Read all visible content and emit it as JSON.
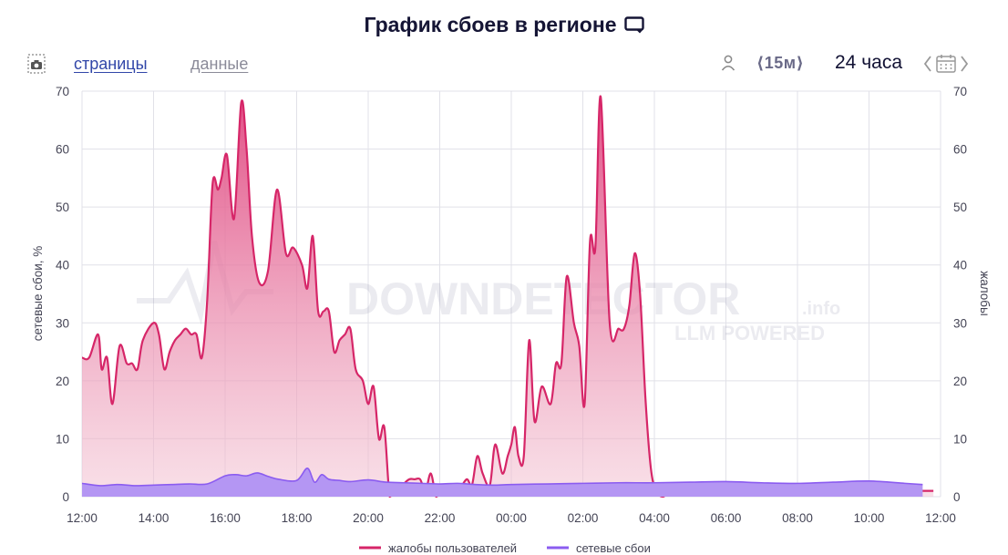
{
  "header": {
    "title": "График сбоев в регионе",
    "title_icon": "monitor-icon"
  },
  "toolbar": {
    "camera_icon": "camera-icon",
    "tab_pages": "страницы",
    "tab_data": "данные",
    "user_icon": "user-icon",
    "interval": "⟨15м⟩",
    "period": "24 часа",
    "calendar_icon": "calendar-icon"
  },
  "watermark": {
    "brand": "DOWNDETECTOR",
    "suffix": ".info",
    "tagline": "LLM POWERED"
  },
  "colors": {
    "complaints": "#d62668",
    "complaints_fill_top": "#e0467f",
    "complaints_fill_bottom": "#f3c6d5",
    "outages": "#8b5cf0",
    "outages_fill": "#b496f3",
    "grid": "#e1e1e8"
  },
  "chart_data": {
    "type": "area",
    "title": "График сбоев в регионе",
    "ylabel": "сетевые сбои, %",
    "ylabel_right": "жалобы",
    "x_ticks": [
      "12:00",
      "14:00",
      "16:00",
      "18:00",
      "20:00",
      "22:00",
      "00:00",
      "02:00",
      "04:00",
      "06:00",
      "08:00",
      "10:00",
      "12:00"
    ],
    "x_range_hours": [
      0,
      24
    ],
    "ylim": [
      0,
      70
    ],
    "y_ticks": [
      0,
      10,
      20,
      30,
      40,
      50,
      60,
      70
    ],
    "grid": true,
    "legend_position": "bottom",
    "series": [
      {
        "name": "жалобы пользователей",
        "x_hours": [
          0,
          0.2,
          0.45,
          0.55,
          0.7,
          0.85,
          1.05,
          1.25,
          1.4,
          1.55,
          1.7,
          2.0,
          2.15,
          2.3,
          2.45,
          2.6,
          2.75,
          2.9,
          3.05,
          3.2,
          3.35,
          3.5,
          3.65,
          3.8,
          3.9,
          4.05,
          4.25,
          4.45,
          4.6,
          4.75,
          4.95,
          5.2,
          5.45,
          5.7,
          5.9,
          6.15,
          6.3,
          6.45,
          6.6,
          6.75,
          6.9,
          7.05,
          7.2,
          7.35,
          7.5,
          7.65,
          7.85,
          8.0,
          8.15,
          8.3,
          8.45,
          8.6,
          8.75,
          8.95,
          9.15,
          9.3,
          9.45,
          9.6,
          9.75,
          9.9,
          10.05,
          10.25,
          10.5,
          10.75,
          10.9,
          11.05,
          11.2,
          11.4,
          11.55,
          11.75,
          11.9,
          12.0,
          12.1,
          12.2,
          12.35,
          12.5,
          12.65,
          12.85,
          13.1,
          13.25,
          13.4,
          13.55,
          13.75,
          13.9,
          14.05,
          14.2,
          14.35,
          14.5,
          14.75,
          15.0,
          15.15,
          15.3,
          15.45,
          15.6,
          15.75,
          15.9,
          16.05,
          16.25,
          16.4,
          16.55,
          16.7,
          16.85,
          17.0,
          17.15,
          17.3,
          17.45,
          17.6,
          17.75,
          17.9,
          18.05,
          18.2,
          18.35,
          18.5,
          18.65,
          18.85,
          19.05,
          19.25,
          19.45,
          19.6,
          19.75,
          19.95,
          20.1,
          20.2,
          20.35,
          20.5,
          20.75,
          20.95,
          21.1,
          21.3,
          21.45,
          21.6,
          21.75,
          21.9,
          22.05,
          22.25,
          22.4,
          22.6,
          22.8,
          22.95,
          23.05,
          23.15,
          23.25,
          23.35,
          23.5,
          23.65,
          23.8
        ],
        "values": [
          24,
          24,
          28,
          22,
          24,
          16,
          26,
          23,
          23,
          22,
          27,
          30,
          28,
          22,
          25,
          27,
          28,
          29,
          28,
          28,
          24,
          34,
          54,
          53,
          55,
          59,
          48,
          68,
          60,
          45,
          37,
          39,
          53,
          42,
          43,
          40,
          36,
          45,
          32,
          32,
          32,
          25,
          27,
          28,
          29,
          22,
          20,
          16,
          19,
          10,
          12,
          0,
          1,
          2,
          3,
          3,
          3,
          1,
          4,
          0,
          1,
          2,
          1,
          3,
          2,
          7,
          4,
          2,
          9,
          4,
          7,
          9,
          12,
          7,
          7,
          27,
          13,
          19,
          16,
          23,
          23,
          38,
          30,
          26,
          16,
          44,
          43,
          69,
          30,
          29,
          29,
          33,
          42,
          35,
          17,
          5,
          1,
          0,
          1,
          1,
          1,
          1,
          1,
          1,
          1,
          1,
          1,
          1,
          1,
          1,
          1,
          1,
          1,
          1,
          1,
          1,
          1,
          1,
          1,
          1,
          1,
          1,
          1,
          1,
          1,
          1,
          1,
          1,
          1,
          1,
          1,
          1,
          1,
          1,
          1,
          1,
          1,
          1,
          1,
          1,
          1,
          1,
          1,
          1,
          1,
          1
        ]
      },
      {
        "name": "сетевые сбои",
        "x_hours": [
          0,
          0.5,
          1.0,
          1.5,
          2.0,
          2.5,
          3.0,
          3.5,
          4.0,
          4.3,
          4.6,
          4.9,
          5.2,
          5.5,
          6.0,
          6.3,
          6.5,
          6.7,
          6.9,
          7.2,
          7.5,
          8.0,
          8.5,
          9.0,
          9.5,
          10.0,
          10.5,
          11.0,
          11.5,
          12.0,
          13.0,
          14.0,
          15.0,
          16.0,
          17.0,
          18.0,
          19.0,
          20.0,
          21.0,
          22.0,
          23.0,
          23.5
        ],
        "values": [
          2.3,
          1.9,
          2.1,
          1.9,
          2.0,
          2.1,
          2.2,
          2.2,
          3.6,
          3.8,
          3.6,
          4.1,
          3.5,
          3.0,
          2.8,
          4.9,
          2.5,
          3.8,
          3.0,
          2.8,
          2.6,
          2.9,
          2.5,
          2.4,
          2.3,
          2.2,
          2.3,
          2.1,
          2.0,
          2.1,
          2.2,
          2.3,
          2.4,
          2.4,
          2.5,
          2.6,
          2.4,
          2.3,
          2.5,
          2.7,
          2.3,
          2.1
        ]
      }
    ]
  }
}
